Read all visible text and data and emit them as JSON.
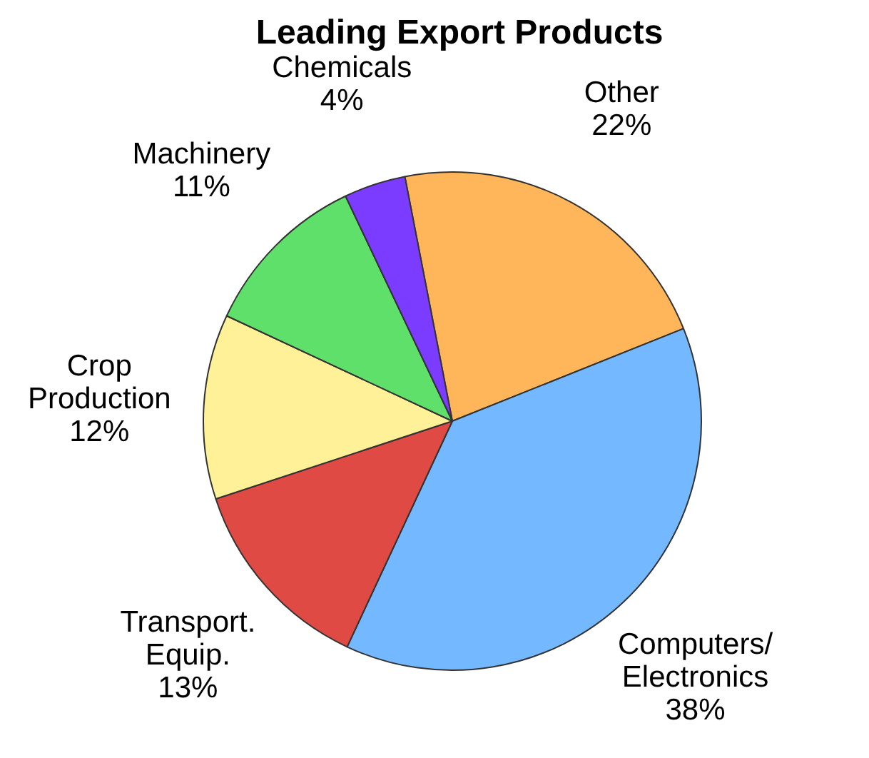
{
  "chart_data": {
    "type": "pie",
    "title": "Leading Export Products",
    "categories": [
      "Other",
      "Computers/ Electronics",
      "Transport. Equip.",
      "Crop Production",
      "Machinery",
      "Chemicals"
    ],
    "values": [
      22,
      38,
      13,
      12,
      11,
      4
    ],
    "value_labels": [
      "22%",
      "38%",
      "13%",
      "12%",
      "11%",
      "4%"
    ],
    "colors": [
      "#ffb55a",
      "#74b9ff",
      "#e04a44",
      "#fff197",
      "#5ee06a",
      "#7b3cff"
    ],
    "legend": false
  }
}
